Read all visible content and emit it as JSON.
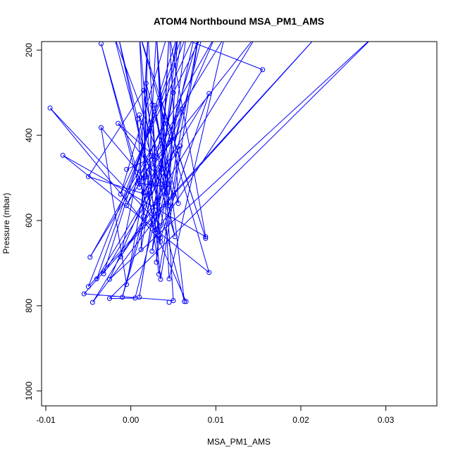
{
  "chart_data": {
    "type": "line",
    "title": "ATOM4 Northbound MSA_PM1_AMS",
    "xlabel": "MSA_PM1_AMS",
    "ylabel": "Pressure (mbar)",
    "xlim": [
      -0.0105,
      0.036
    ],
    "ylim": [
      1035,
      180
    ],
    "y_reversed": true,
    "x_ticks": [
      -0.01,
      0.0,
      0.01,
      0.02,
      0.03
    ],
    "x_tick_labels": [
      "-0.01",
      "0.00",
      "0.01",
      "0.02",
      "0.03"
    ],
    "y_ticks": [
      200,
      400,
      600,
      800,
      1000
    ],
    "y_tick_labels": [
      "200",
      "400",
      "600",
      "800",
      "1000"
    ],
    "series_color": "#0000ff",
    "grid": false,
    "legend": "none",
    "marker": "open-circle",
    "points": [
      [
        0.0065,
        790
      ],
      [
        0.0045,
        792
      ],
      [
        -0.0045,
        792
      ],
      [
        0.0056,
        560
      ],
      [
        0.0012,
        668
      ],
      [
        0.0092,
        722
      ],
      [
        0.003,
        698
      ],
      [
        0.0088,
        642
      ],
      [
        0.001,
        780
      ],
      [
        0.0063,
        790
      ],
      [
        -0.0055,
        772
      ],
      [
        -0.001,
        780
      ],
      [
        0.0022,
        480
      ],
      [
        0.005,
        788
      ],
      [
        0.0092,
        302
      ],
      [
        -0.008,
        447
      ],
      [
        0.005,
        540
      ],
      [
        0.0045,
        515
      ],
      [
        -0.0035,
        382
      ],
      [
        -0.0005,
        565
      ],
      [
        0.0025,
        328
      ],
      [
        0.004,
        365
      ],
      [
        0.0015,
        295
      ],
      [
        0.0032,
        635
      ],
      [
        0.0035,
        612
      ],
      [
        0.001,
        522
      ],
      [
        0.0155,
        246
      ],
      [
        0.0018,
        278
      ],
      [
        0.006,
        338
      ],
      [
        0.0008,
        362
      ],
      [
        -0.0015,
        372
      ],
      [
        -0.004,
        737
      ],
      [
        0.0052,
        638
      ],
      [
        0.0033,
        726
      ],
      [
        0.0025,
        672
      ],
      [
        -0.0048,
        686
      ],
      [
        0.002,
        540
      ],
      [
        0.0045,
        565
      ],
      [
        -0.005,
        497
      ],
      [
        0.0025,
        512
      ],
      [
        0.0015,
        535
      ],
      [
        0.0058,
        425
      ],
      [
        -0.0012,
        538
      ],
      [
        0.0035,
        312
      ],
      [
        -0.0032,
        725
      ],
      [
        0.0008,
        512
      ],
      [
        0.0018,
        497
      ],
      [
        -0.0012,
        685
      ],
      [
        0.0035,
        640
      ],
      [
        0.0035,
        738
      ],
      [
        0.0045,
        737
      ],
      [
        0.0032,
        560
      ],
      [
        0.0088,
        638
      ],
      [
        -0.0005,
        750
      ],
      [
        -0.0025,
        738
      ],
      [
        -0.0025,
        783
      ],
      [
        0.0005,
        782
      ],
      [
        0.001,
        352
      ],
      [
        -0.0005,
        480
      ],
      [
        -0.005,
        755
      ],
      [
        0.0015,
        500
      ],
      [
        -0.0095,
        336
      ],
      [
        0.0035,
        475
      ],
      [
        0.005,
        400
      ],
      [
        0.0015,
        590
      ],
      [
        0.0028,
        330
      ],
      [
        0.004,
        520
      ],
      [
        0.0028,
        450
      ],
      [
        -0.0035,
        185
      ],
      [
        0.0025,
        610
      ],
      [
        0.005,
        300
      ],
      [
        0.0035,
        650
      ]
    ],
    "offscreen_points": [
      [
        0.002,
        170
      ],
      [
        -0.002,
        165
      ],
      [
        0.008,
        165
      ],
      [
        0.0045,
        160
      ],
      [
        0.011,
        170
      ],
      [
        0.0055,
        165
      ],
      [
        0.003,
        160
      ],
      [
        0.022,
        165
      ],
      [
        0.015,
        160
      ],
      [
        0.0065,
        168
      ],
      [
        0.029,
        160
      ],
      [
        0.0085,
        160
      ],
      [
        0.001,
        160
      ],
      [
        0.0045,
        150
      ],
      [
        0.0075,
        165
      ],
      [
        0.002,
        155
      ],
      [
        0.01,
        165
      ],
      [
        -0.0015,
        165
      ],
      [
        0.006,
        168
      ]
    ],
    "path": [
      [
        0.0065,
        790
      ],
      [
        0.0025,
        610
      ],
      [
        -0.0035,
        185
      ],
      [
        0.001,
        522
      ],
      [
        0.002,
        170
      ],
      [
        0.0012,
        668
      ],
      [
        0.0055,
        165
      ],
      [
        0.0045,
        540
      ],
      [
        0.008,
        165
      ],
      [
        0.0035,
        738
      ],
      [
        0.0022,
        480
      ],
      [
        0.015,
        160
      ],
      [
        -0.0045,
        792
      ],
      [
        0.005,
        540
      ],
      [
        -0.002,
        165
      ],
      [
        0.0063,
        790
      ],
      [
        0.0035,
        312
      ],
      [
        0.0088,
        642
      ],
      [
        0.001,
        160
      ],
      [
        0.0092,
        722
      ],
      [
        -0.008,
        447
      ],
      [
        0.0088,
        638
      ],
      [
        0.0045,
        160
      ],
      [
        0.003,
        698
      ],
      [
        0.0065,
        168
      ],
      [
        -0.005,
        755
      ],
      [
        0.022,
        165
      ],
      [
        -0.0055,
        772
      ],
      [
        0.005,
        788
      ],
      [
        0.003,
        160
      ],
      [
        0.0045,
        737
      ],
      [
        0.011,
        170
      ],
      [
        -0.0048,
        686
      ],
      [
        0.01,
        165
      ],
      [
        -0.0025,
        738
      ],
      [
        0.029,
        160
      ],
      [
        -0.0025,
        783
      ],
      [
        0.0005,
        782
      ],
      [
        0.0085,
        160
      ],
      [
        0.005,
        300
      ],
      [
        0.001,
        780
      ],
      [
        0.006,
        168
      ],
      [
        -0.004,
        737
      ],
      [
        0.0092,
        302
      ],
      [
        0.0035,
        640
      ],
      [
        -0.0015,
        165
      ],
      [
        0.0008,
        362
      ],
      [
        0.0015,
        590
      ],
      [
        0.002,
        155
      ],
      [
        0.0032,
        560
      ],
      [
        0.0075,
        165
      ],
      [
        -0.0012,
        538
      ],
      [
        0.0045,
        150
      ],
      [
        0.0056,
        560
      ],
      [
        0.0018,
        278
      ],
      [
        0.0035,
        650
      ],
      [
        -0.0095,
        336
      ],
      [
        0.0035,
        612
      ],
      [
        0.0155,
        246
      ],
      [
        0.0045,
        160
      ],
      [
        0.004,
        365
      ],
      [
        -0.0005,
        565
      ],
      [
        0.006,
        338
      ],
      [
        0.0025,
        672
      ],
      [
        0.0055,
        165
      ],
      [
        -0.0032,
        725
      ],
      [
        0.0058,
        425
      ],
      [
        0.0033,
        726
      ],
      [
        0.001,
        352
      ],
      [
        0.0052,
        638
      ],
      [
        0.0015,
        295
      ],
      [
        -0.005,
        497
      ],
      [
        0.002,
        540
      ],
      [
        0.003,
        160
      ],
      [
        0.0045,
        565
      ],
      [
        0.0028,
        330
      ],
      [
        0.0045,
        515
      ],
      [
        -0.0012,
        685
      ],
      [
        0.0025,
        328
      ],
      [
        0.0032,
        635
      ],
      [
        0.0015,
        500
      ],
      [
        -0.0035,
        382
      ],
      [
        -0.0005,
        750
      ],
      [
        0.0018,
        497
      ],
      [
        0.001,
        160
      ],
      [
        0.0025,
        512
      ],
      [
        -0.001,
        780
      ],
      [
        0.008,
        165
      ],
      [
        0.0035,
        475
      ],
      [
        0.0015,
        535
      ],
      [
        0.005,
        400
      ],
      [
        0.0008,
        512
      ],
      [
        0.004,
        520
      ],
      [
        -0.0015,
        372
      ],
      [
        0.0028,
        450
      ],
      [
        -0.0005,
        480
      ]
    ]
  }
}
